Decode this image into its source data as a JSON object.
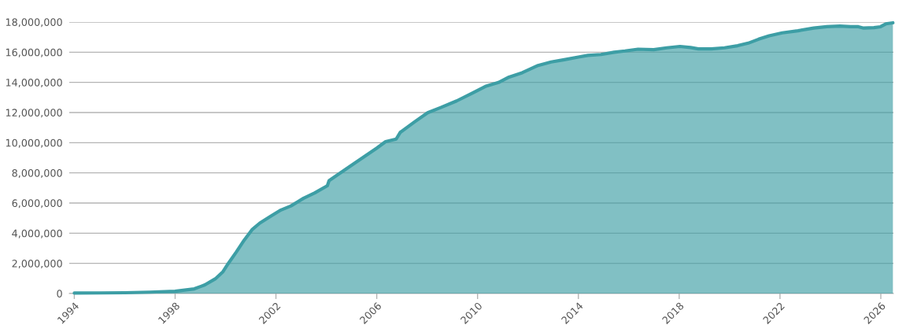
{
  "chart_data": {
    "type": "area",
    "x": [
      1994.0,
      1995.0,
      1996.0,
      1997.0,
      1998.0,
      1998.76,
      1999.18,
      1999.59,
      1999.9,
      2000.1,
      2000.43,
      2000.74,
      2001.05,
      2001.36,
      2001.78,
      2002.2,
      2002.6,
      2003.1,
      2003.54,
      2004.04,
      2004.11,
      2005.0,
      2006.0,
      2006.35,
      2006.77,
      2006.93,
      2007.5,
      2008.02,
      2008.54,
      2009.17,
      2009.79,
      2010.31,
      2010.83,
      2011.25,
      2011.77,
      2012.4,
      2012.92,
      2013.44,
      2014.0,
      2014.38,
      2014.9,
      2015.42,
      2015.85,
      2016.37,
      2016.99,
      2017.51,
      2018.03,
      2018.45,
      2018.76,
      2019.28,
      2019.8,
      2020.32,
      2020.74,
      2021.15,
      2021.57,
      2022.09,
      2022.71,
      2023.34,
      2023.86,
      2024.38,
      2024.8,
      2025.11,
      2025.32,
      2025.73,
      2025.99,
      2026.2,
      2026.48
    ],
    "series": [
      {
        "color": "#3d9ea5",
        "values": [
          30000,
          40000,
          50000,
          90000,
          150000,
          310000,
          570000,
          970000,
          1450000,
          1970000,
          2760000,
          3540000,
          4230000,
          4670000,
          5110000,
          5540000,
          5810000,
          6320000,
          6670000,
          7150000,
          7490000,
          8500000,
          9640000,
          10070000,
          10240000,
          10680000,
          11380000,
          11990000,
          12330000,
          12770000,
          13290000,
          13730000,
          13990000,
          14350000,
          14640000,
          15120000,
          15350000,
          15500000,
          15680000,
          15790000,
          15850000,
          16000000,
          16080000,
          16200000,
          16170000,
          16290000,
          16380000,
          16310000,
          16220000,
          16220000,
          16290000,
          16430000,
          16600000,
          16860000,
          17090000,
          17280000,
          17420000,
          17600000,
          17690000,
          17730000,
          17690000,
          17690000,
          17600000,
          17630000,
          17690000,
          17880000,
          17950000
        ]
      }
    ],
    "xlim": [
      1993.8,
      2026.5
    ],
    "xticks": [
      1994,
      1998,
      2002,
      2006,
      2010,
      2014,
      2018,
      2022,
      2026
    ],
    "ylim": [
      0,
      18000000
    ],
    "yticks": [
      0,
      {
        "value": 2000000,
        "label": "2,000,000"
      },
      {
        "value": 4000000,
        "label": "4,000,000"
      },
      {
        "value": 6000000,
        "label": "6,000,000"
      },
      {
        "value": 8000000,
        "label": "8,000,000"
      },
      {
        "value": 10000000,
        "label": "10,000,000"
      },
      {
        "value": 12000000,
        "label": "12,000,000"
      },
      {
        "value": 14000000,
        "label": "14,000,000"
      },
      {
        "value": 16000000,
        "label": "16,000,000"
      },
      {
        "value": 18000000,
        "label": "18,000,000"
      }
    ],
    "grid": "y"
  }
}
